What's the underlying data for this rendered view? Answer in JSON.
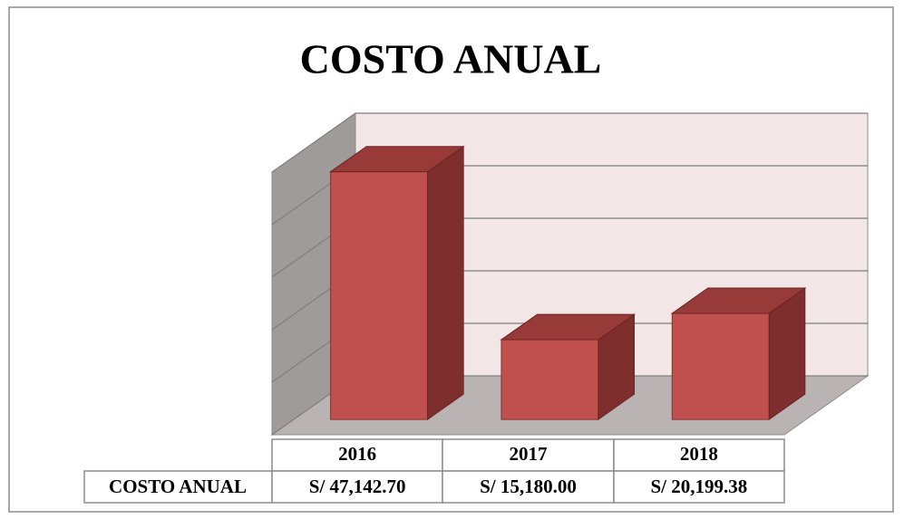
{
  "chart_data": {
    "type": "bar3d",
    "title": "COSTO ANUAL",
    "categories": [
      "2016",
      "2017",
      "2018"
    ],
    "series": [
      {
        "name": "COSTO ANUAL",
        "color": "#c0504d",
        "values": [
          47142.7,
          15180.0,
          20199.38
        ],
        "value_labels": [
          "S/ 47,142.70",
          "S/ 15,180.00",
          "S/ 20,199.38"
        ]
      }
    ],
    "ylim": [
      0,
      50000
    ],
    "yticks": [
      0,
      10000,
      20000,
      30000,
      40000,
      50000
    ],
    "grid": true
  }
}
